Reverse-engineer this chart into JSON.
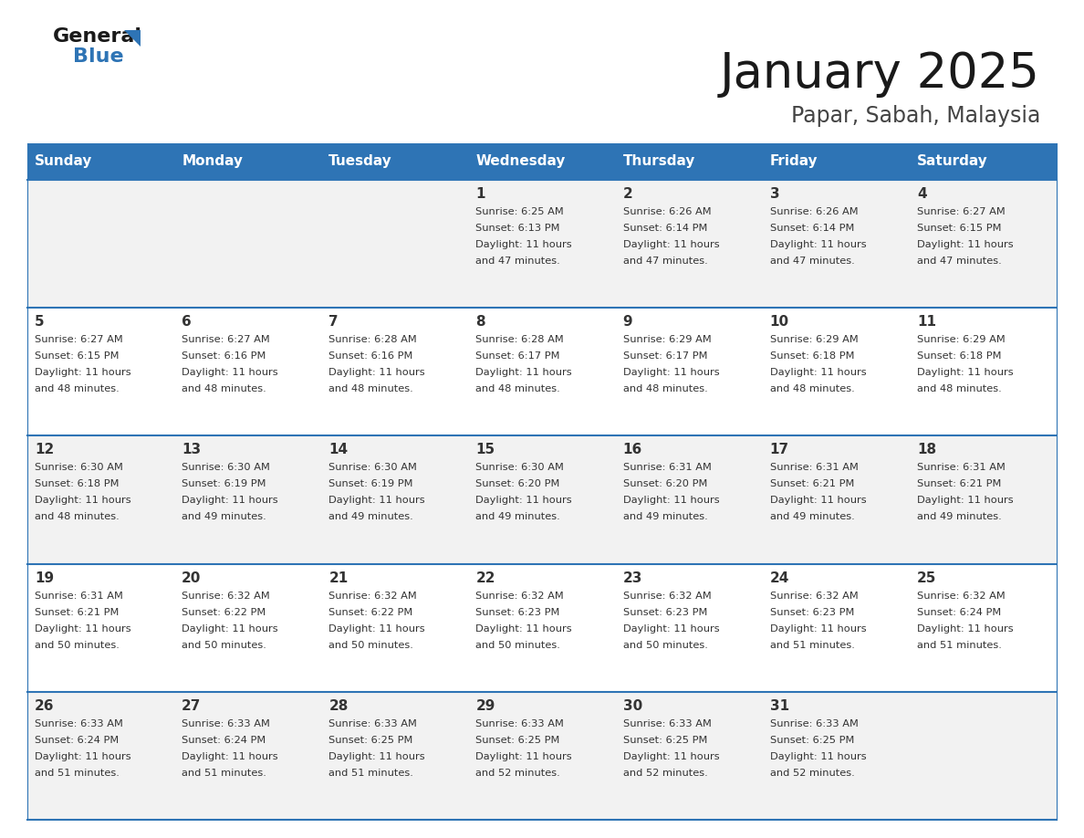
{
  "title": "January 2025",
  "subtitle": "Papar, Sabah, Malaysia",
  "header_bg": "#2E74B5",
  "header_text": "#FFFFFF",
  "cell_bg_odd": "#F2F2F2",
  "cell_bg_even": "#FFFFFF",
  "border_color": "#2E74B5",
  "text_color": "#333333",
  "days": [
    "Sunday",
    "Monday",
    "Tuesday",
    "Wednesday",
    "Thursday",
    "Friday",
    "Saturday"
  ],
  "weeks": [
    [
      {
        "date": "",
        "sunrise": "",
        "sunset": "",
        "daylight": ""
      },
      {
        "date": "",
        "sunrise": "",
        "sunset": "",
        "daylight": ""
      },
      {
        "date": "",
        "sunrise": "",
        "sunset": "",
        "daylight": ""
      },
      {
        "date": "1",
        "sunrise": "6:25 AM",
        "sunset": "6:13 PM",
        "daylight": "11 hours and 47 minutes."
      },
      {
        "date": "2",
        "sunrise": "6:26 AM",
        "sunset": "6:14 PM",
        "daylight": "11 hours and 47 minutes."
      },
      {
        "date": "3",
        "sunrise": "6:26 AM",
        "sunset": "6:14 PM",
        "daylight": "11 hours and 47 minutes."
      },
      {
        "date": "4",
        "sunrise": "6:27 AM",
        "sunset": "6:15 PM",
        "daylight": "11 hours and 47 minutes."
      }
    ],
    [
      {
        "date": "5",
        "sunrise": "6:27 AM",
        "sunset": "6:15 PM",
        "daylight": "11 hours and 48 minutes."
      },
      {
        "date": "6",
        "sunrise": "6:27 AM",
        "sunset": "6:16 PM",
        "daylight": "11 hours and 48 minutes."
      },
      {
        "date": "7",
        "sunrise": "6:28 AM",
        "sunset": "6:16 PM",
        "daylight": "11 hours and 48 minutes."
      },
      {
        "date": "8",
        "sunrise": "6:28 AM",
        "sunset": "6:17 PM",
        "daylight": "11 hours and 48 minutes."
      },
      {
        "date": "9",
        "sunrise": "6:29 AM",
        "sunset": "6:17 PM",
        "daylight": "11 hours and 48 minutes."
      },
      {
        "date": "10",
        "sunrise": "6:29 AM",
        "sunset": "6:18 PM",
        "daylight": "11 hours and 48 minutes."
      },
      {
        "date": "11",
        "sunrise": "6:29 AM",
        "sunset": "6:18 PM",
        "daylight": "11 hours and 48 minutes."
      }
    ],
    [
      {
        "date": "12",
        "sunrise": "6:30 AM",
        "sunset": "6:18 PM",
        "daylight": "11 hours and 48 minutes."
      },
      {
        "date": "13",
        "sunrise": "6:30 AM",
        "sunset": "6:19 PM",
        "daylight": "11 hours and 49 minutes."
      },
      {
        "date": "14",
        "sunrise": "6:30 AM",
        "sunset": "6:19 PM",
        "daylight": "11 hours and 49 minutes."
      },
      {
        "date": "15",
        "sunrise": "6:30 AM",
        "sunset": "6:20 PM",
        "daylight": "11 hours and 49 minutes."
      },
      {
        "date": "16",
        "sunrise": "6:31 AM",
        "sunset": "6:20 PM",
        "daylight": "11 hours and 49 minutes."
      },
      {
        "date": "17",
        "sunrise": "6:31 AM",
        "sunset": "6:21 PM",
        "daylight": "11 hours and 49 minutes."
      },
      {
        "date": "18",
        "sunrise": "6:31 AM",
        "sunset": "6:21 PM",
        "daylight": "11 hours and 49 minutes."
      }
    ],
    [
      {
        "date": "19",
        "sunrise": "6:31 AM",
        "sunset": "6:21 PM",
        "daylight": "11 hours and 50 minutes."
      },
      {
        "date": "20",
        "sunrise": "6:32 AM",
        "sunset": "6:22 PM",
        "daylight": "11 hours and 50 minutes."
      },
      {
        "date": "21",
        "sunrise": "6:32 AM",
        "sunset": "6:22 PM",
        "daylight": "11 hours and 50 minutes."
      },
      {
        "date": "22",
        "sunrise": "6:32 AM",
        "sunset": "6:23 PM",
        "daylight": "11 hours and 50 minutes."
      },
      {
        "date": "23",
        "sunrise": "6:32 AM",
        "sunset": "6:23 PM",
        "daylight": "11 hours and 50 minutes."
      },
      {
        "date": "24",
        "sunrise": "6:32 AM",
        "sunset": "6:23 PM",
        "daylight": "11 hours and 51 minutes."
      },
      {
        "date": "25",
        "sunrise": "6:32 AM",
        "sunset": "6:24 PM",
        "daylight": "11 hours and 51 minutes."
      }
    ],
    [
      {
        "date": "26",
        "sunrise": "6:33 AM",
        "sunset": "6:24 PM",
        "daylight": "11 hours and 51 minutes."
      },
      {
        "date": "27",
        "sunrise": "6:33 AM",
        "sunset": "6:24 PM",
        "daylight": "11 hours and 51 minutes."
      },
      {
        "date": "28",
        "sunrise": "6:33 AM",
        "sunset": "6:25 PM",
        "daylight": "11 hours and 51 minutes."
      },
      {
        "date": "29",
        "sunrise": "6:33 AM",
        "sunset": "6:25 PM",
        "daylight": "11 hours and 52 minutes."
      },
      {
        "date": "30",
        "sunrise": "6:33 AM",
        "sunset": "6:25 PM",
        "daylight": "11 hours and 52 minutes."
      },
      {
        "date": "31",
        "sunrise": "6:33 AM",
        "sunset": "6:25 PM",
        "daylight": "11 hours and 52 minutes."
      },
      {
        "date": "",
        "sunrise": "",
        "sunset": "",
        "daylight": ""
      }
    ]
  ]
}
